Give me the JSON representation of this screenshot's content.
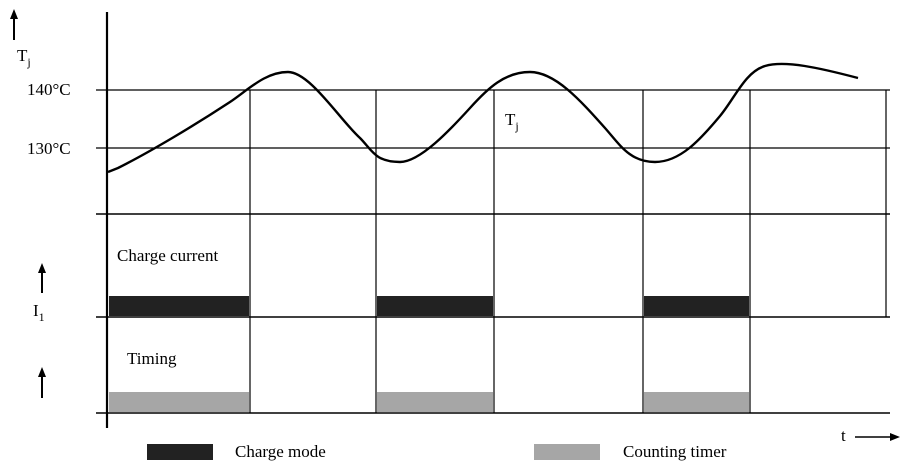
{
  "temperature_panel": {
    "axis_symbol": "T",
    "axis_symbol_sub": "j",
    "tick_140": "140°C",
    "tick_130": "130°C",
    "curve_symbol": "T",
    "curve_symbol_sub": "j"
  },
  "current_panel": {
    "axis_symbol": "I",
    "axis_symbol_sub": "1",
    "label": "Charge current",
    "pulse_color": "#222222"
  },
  "timing_panel": {
    "label": "Timing",
    "pulse_color": "#a6a6a6"
  },
  "time_axis": {
    "label": "t"
  },
  "legend": {
    "charge_mode": {
      "label": "Charge mode",
      "color": "#222222"
    },
    "counting_timer": {
      "label": "Counting timer",
      "color": "#a6a6a6"
    }
  }
}
